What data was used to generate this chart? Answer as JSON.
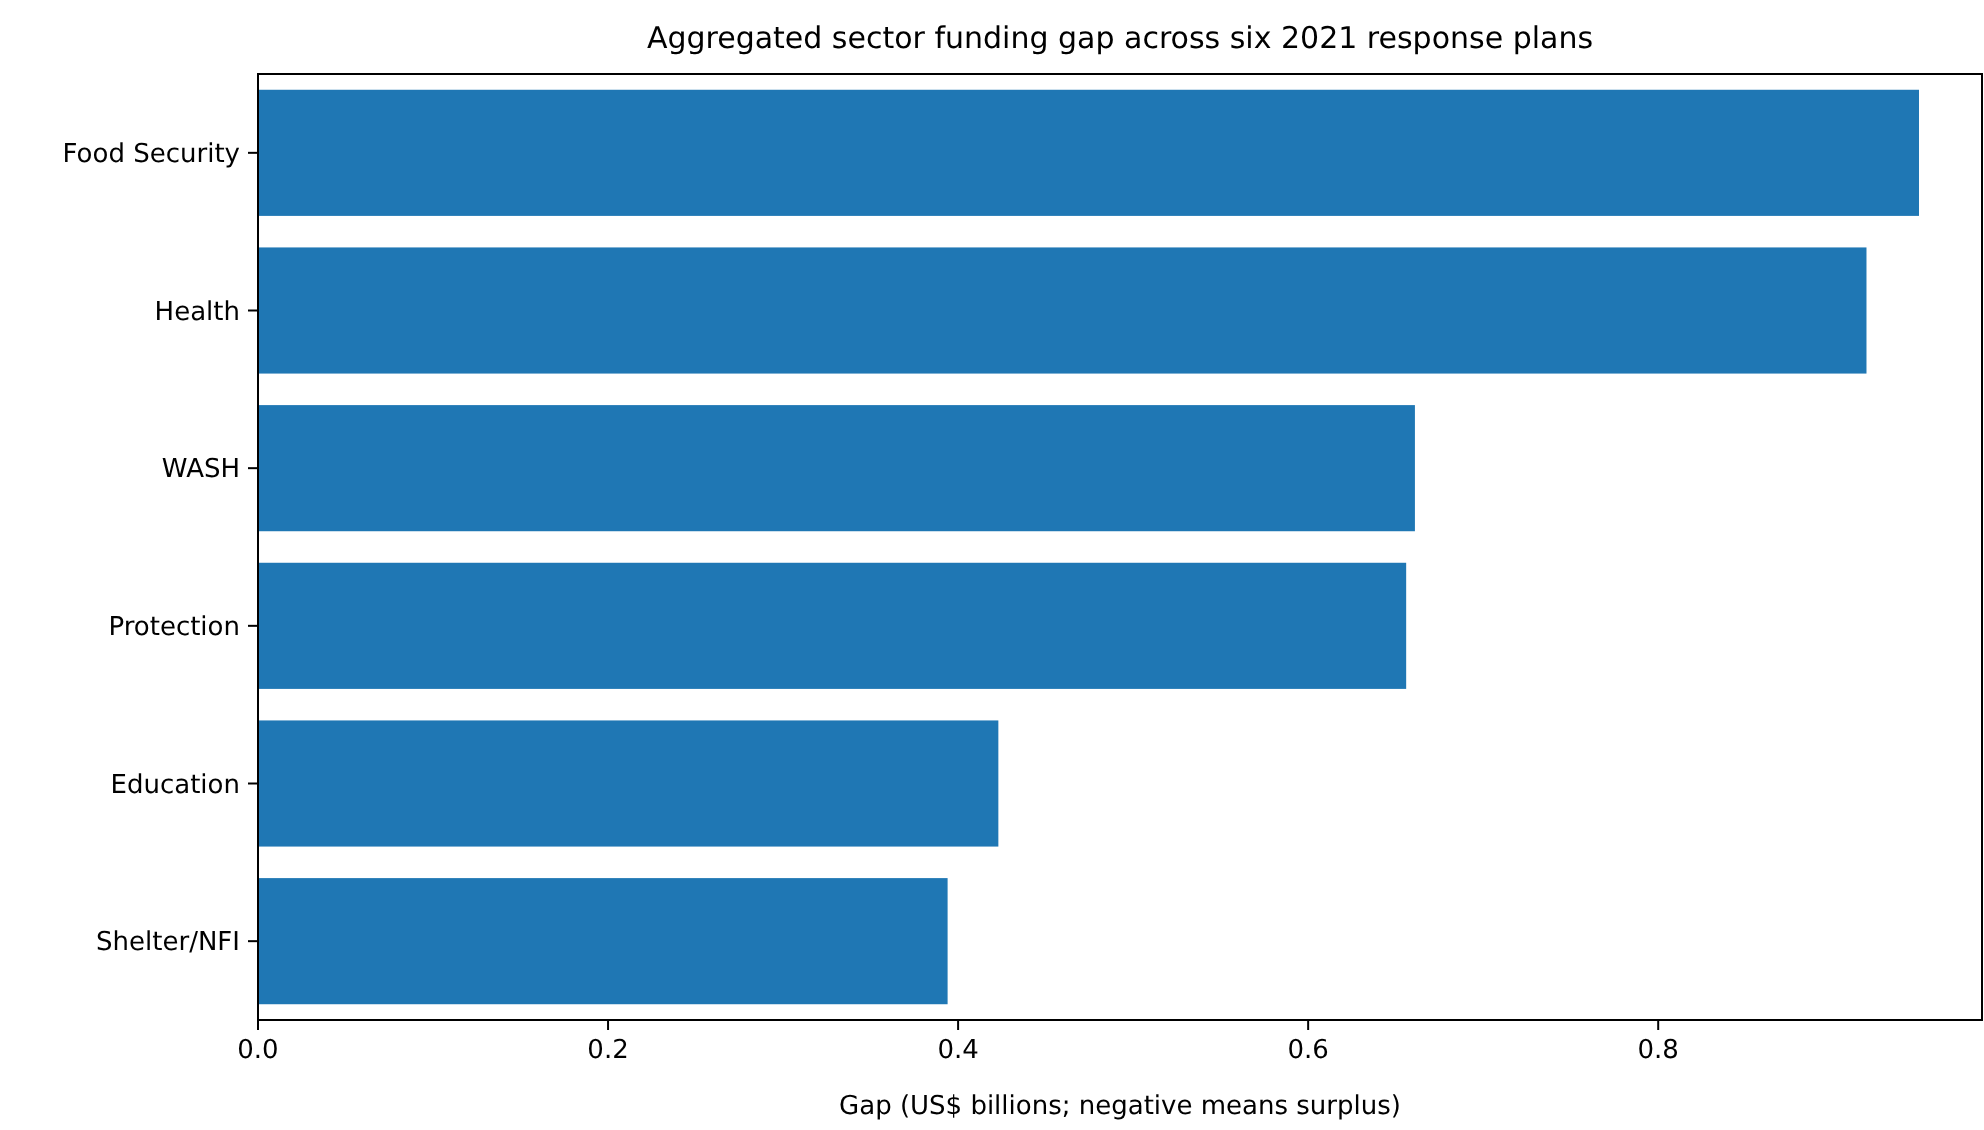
{
  "chart_data": {
    "type": "bar",
    "orientation": "horizontal",
    "title": "Aggregated sector funding gap across six 2021 response plans",
    "xlabel": "Gap (US$ billions; negative means surplus)",
    "categories": [
      "Food Security",
      "Health",
      "WASH",
      "Protection",
      "Education",
      "Shelter/NFI"
    ],
    "values": [
      0.949,
      0.919,
      0.661,
      0.656,
      0.423,
      0.394
    ],
    "color": "#1f77b4",
    "xlim": [
      0,
      0.985
    ],
    "xticks": [
      {
        "value": 0,
        "label": "0.0"
      },
      {
        "value": 0.2,
        "label": "0.2"
      },
      {
        "value": 0.4,
        "label": "0.4"
      },
      {
        "value": 0.6,
        "label": "0.6"
      },
      {
        "value": 0.8,
        "label": "0.8"
      }
    ],
    "grid": false
  }
}
